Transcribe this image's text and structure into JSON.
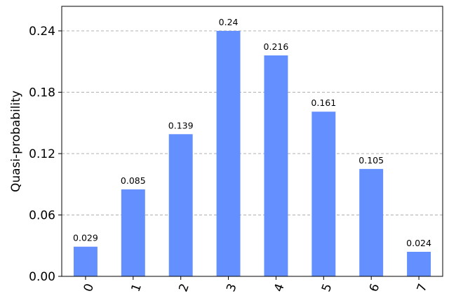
{
  "chart_data": {
    "type": "bar",
    "title": "",
    "xlabel": "",
    "ylabel": "Quasi-probability",
    "categories": [
      "0",
      "1",
      "2",
      "3",
      "4",
      "5",
      "6",
      "7"
    ],
    "values": [
      0.029,
      0.085,
      0.139,
      0.24,
      0.216,
      0.161,
      0.105,
      0.024
    ],
    "data_labels": [
      "0.029",
      "0.085",
      "0.139",
      "0.24",
      "0.216",
      "0.161",
      "0.105",
      "0.024"
    ],
    "yticks": [
      0.0,
      0.06,
      0.12,
      0.18,
      0.24
    ],
    "ytick_labels": [
      "0.00",
      "0.06",
      "0.12",
      "0.18",
      "0.24"
    ],
    "ylim": [
      0,
      0.264
    ],
    "grid": "horizontal dashed",
    "legend": "none",
    "bar_color": "#648fff",
    "grid_color": "#b0b0b0",
    "xtick_rotation": "70 degrees"
  }
}
